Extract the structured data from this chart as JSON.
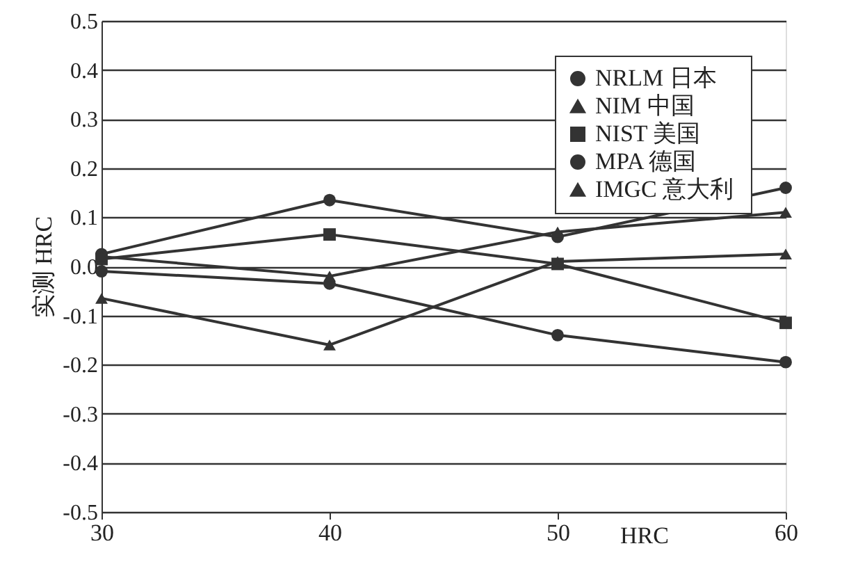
{
  "chart_data": {
    "type": "line",
    "xlabel": "HRC",
    "ylabel": "实测  HRC",
    "x": [
      30,
      40,
      50,
      60
    ],
    "series": [
      {
        "name": "NRLM  日本",
        "color": "#333333",
        "marker": "circle",
        "values": [
          -0.01,
          -0.035,
          -0.14,
          -0.195
        ]
      },
      {
        "name": "NIM   中国",
        "color": "#333333",
        "marker": "triangle",
        "values": [
          -0.065,
          -0.16,
          0.01,
          0.025
        ]
      },
      {
        "name": "NIST  美国",
        "color": "#333333",
        "marker": "square",
        "values": [
          0.015,
          0.065,
          0.005,
          -0.115
        ]
      },
      {
        "name": "MPA   德国",
        "color": "#333333",
        "marker": "circle",
        "values": [
          0.025,
          0.135,
          0.06,
          0.16
        ]
      },
      {
        "name": "IMGC  意大利",
        "color": "#333333",
        "marker": "triangle",
        "values": [
          0.02,
          -0.02,
          0.07,
          0.11
        ]
      }
    ],
    "xlim": [
      30,
      60
    ],
    "xticks": [
      30,
      40,
      50,
      60
    ],
    "ylim": [
      -0.5,
      0.5
    ],
    "yticks": [
      {
        "value": -0.5,
        "label": "-0.5"
      },
      {
        "value": -0.4,
        "label": "-0.4"
      },
      {
        "value": -0.3,
        "label": "-0.3"
      },
      {
        "value": -0.2,
        "label": "-0.2"
      },
      {
        "value": -0.1,
        "label": "-0.1"
      },
      {
        "value": 0,
        "label": "0.0"
      },
      {
        "value": 0.1,
        "label": "0.1"
      },
      {
        "value": 0.2,
        "label": "0.2"
      },
      {
        "value": 0.3,
        "label": "0.3"
      },
      {
        "value": 0.4,
        "label": "0.4"
      },
      {
        "value": 0.5,
        "label": "0.5"
      }
    ],
    "grid": "y",
    "legend": "top right",
    "line_style": "solid"
  }
}
